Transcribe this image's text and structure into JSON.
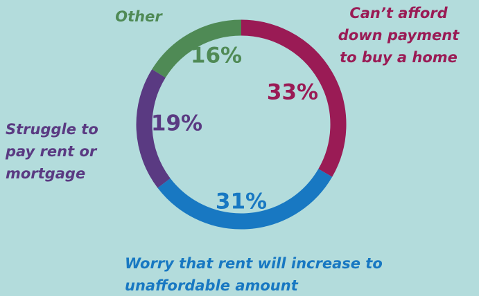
{
  "chart_data": {
    "type": "donut",
    "categories": [
      "Can’t afford\ndown payment\nto buy a home",
      "Worry that rent will increase to\nunaffordable amount",
      "Struggle to\npay rent or\nmortgage",
      "Other"
    ],
    "values": [
      33,
      31,
      19,
      16
    ],
    "value_labels": [
      "33%",
      "31%",
      "19%",
      "16%"
    ],
    "colors": [
      "#9a1b55",
      "#1878c2",
      "#5a3a82",
      "#4f8a55"
    ]
  }
}
